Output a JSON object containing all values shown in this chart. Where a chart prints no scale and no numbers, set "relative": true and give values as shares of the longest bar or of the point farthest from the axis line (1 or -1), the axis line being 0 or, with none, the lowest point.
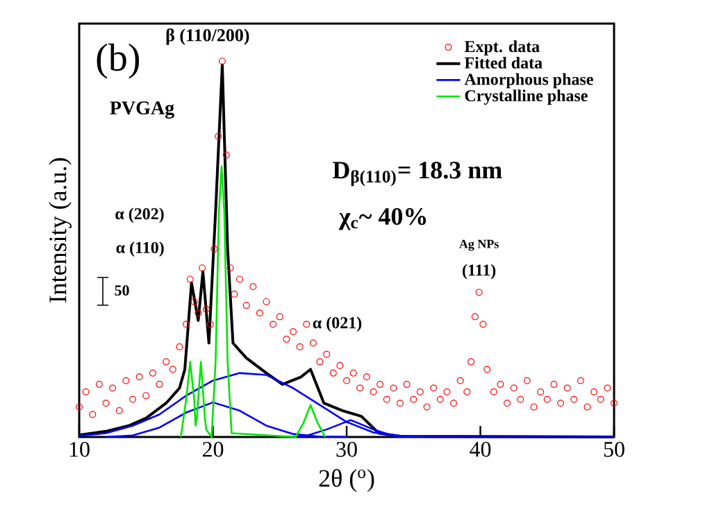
{
  "chart_data": {
    "type": "line",
    "relative": true,
    "xlabel": "2θ ($^{o}$)",
    "ylabel": "Intensity (a.u.)",
    "xlim": [
      10,
      50
    ],
    "xticks": [
      10,
      20,
      30,
      40,
      50
    ],
    "legend": "top right",
    "line_style": "solid",
    "annotations": [
      "(b)",
      "β (110/200)",
      "PVGAg",
      "α (202)",
      "α (110)",
      "α (021)",
      "Ag NPs",
      "(111)",
      "D$_{β(110)}$= 18.3 nm",
      "χ$_{c}$~ 40%",
      "50"
    ],
    "series": [
      {
        "name": "Expt. data",
        "type": "scatter",
        "marker": "circle",
        "color": "#ff0000",
        "x": [
          10,
          10.5,
          11,
          11.5,
          12,
          12.5,
          13,
          13.5,
          14,
          14.5,
          15,
          15.5,
          16,
          16.5,
          17,
          17.5,
          18,
          18.3,
          18.6,
          18.9,
          19.2,
          19.5,
          19.8,
          20.1,
          20.4,
          20.7,
          21,
          21.3,
          21.6,
          22,
          22.5,
          23,
          23.5,
          24,
          24.5,
          25,
          25.5,
          26,
          26.5,
          27,
          27.5,
          28,
          28.5,
          29,
          29.5,
          30,
          30.5,
          31,
          31.5,
          32,
          32.5,
          33,
          33.5,
          34,
          34.5,
          35,
          35.5,
          36,
          36.5,
          37,
          37.5,
          38,
          38.5,
          39,
          39.3,
          39.6,
          39.9,
          40.2,
          40.5,
          41,
          41.5,
          42,
          42.5,
          43,
          43.5,
          44,
          44.5,
          45,
          45.5,
          46,
          46.5,
          47,
          47.5,
          48,
          48.5,
          49,
          49.5,
          50
        ],
        "values": [
          0.08,
          0.12,
          0.06,
          0.14,
          0.09,
          0.13,
          0.07,
          0.15,
          0.1,
          0.16,
          0.11,
          0.17,
          0.14,
          0.2,
          0.18,
          0.24,
          0.3,
          0.42,
          0.36,
          0.33,
          0.45,
          0.34,
          0.3,
          0.5,
          0.8,
          1,
          0.75,
          0.45,
          0.38,
          0.42,
          0.35,
          0.4,
          0.33,
          0.36,
          0.3,
          0.32,
          0.26,
          0.28,
          0.24,
          0.3,
          0.25,
          0.2,
          0.22,
          0.17,
          0.19,
          0.15,
          0.17,
          0.13,
          0.16,
          0.12,
          0.14,
          0.1,
          0.13,
          0.09,
          0.14,
          0.1,
          0.12,
          0.08,
          0.13,
          0.1,
          0.12,
          0.09,
          0.15,
          0.12,
          0.2,
          0.32,
          0.385,
          0.3,
          0.18,
          0.12,
          0.14,
          0.09,
          0.13,
          0.1,
          0.15,
          0.08,
          0.12,
          0.1,
          0.14,
          0.09,
          0.13,
          0.1,
          0.15,
          0.08,
          0.12,
          0.1,
          0.13,
          0.09
        ]
      },
      {
        "name": "Fitted data",
        "color": "#000000",
        "x": [
          10,
          12,
          13.7,
          15,
          16.5,
          17.5,
          17.9,
          18.4,
          18.9,
          19.25,
          19.7,
          20.2,
          20.7,
          21.1,
          21.5,
          22.5,
          24,
          25.2,
          26.6,
          27.3,
          28.3,
          29.7,
          31.1,
          32.4,
          34,
          50
        ],
        "values": [
          0.005,
          0.015,
          0.03,
          0.05,
          0.09,
          0.13,
          0.18,
          0.41,
          0.31,
          0.44,
          0.25,
          0.6,
          0.99,
          0.5,
          0.25,
          0.21,
          0.17,
          0.14,
          0.16,
          0.18,
          0.09,
          0.07,
          0.055,
          0.01,
          0.002,
          0
        ]
      },
      {
        "name": "Amorphous phase",
        "color": "#0000ff",
        "x": [
          10,
          12,
          14,
          16,
          18,
          20,
          22,
          24,
          26,
          28,
          30,
          32,
          34,
          36,
          50
        ],
        "values": [
          0.003,
          0.01,
          0.03,
          0.06,
          0.11,
          0.15,
          0.17,
          0.165,
          0.13,
          0.085,
          0.04,
          0.012,
          0.003,
          0,
          0
        ]
      },
      {
        "color": "#0000ff",
        "x": [
          12,
          14,
          16,
          18,
          20,
          22,
          24,
          26,
          28,
          30
        ],
        "values": [
          0,
          0.004,
          0.025,
          0.065,
          0.092,
          0.07,
          0.03,
          0.008,
          0.001,
          0
        ]
      },
      {
        "color": "#0000ff",
        "x": [
          26,
          27,
          28.5,
          30.3,
          32,
          33.5,
          35
        ],
        "values": [
          0,
          0.003,
          0.02,
          0.045,
          0.02,
          0.003,
          0
        ]
      },
      {
        "name": "Crystalline phase",
        "color": "#00e600",
        "x": [
          17.6,
          18,
          18.3,
          18.6,
          18.7,
          18.8,
          19.1,
          19.4,
          19.5,
          19.9,
          20.2,
          20.45,
          20.65,
          20.85,
          21.1,
          21.4,
          26.2,
          26.8,
          27.3,
          27.8,
          28.4
        ],
        "values": [
          0,
          0.1,
          0.2,
          0.1,
          0.03,
          0.05,
          0.2,
          0.05,
          0.02,
          0,
          0.2,
          0.6,
          0.72,
          0.6,
          0.2,
          0.01,
          0,
          0.04,
          0.085,
          0.04,
          0
        ]
      }
    ]
  }
}
